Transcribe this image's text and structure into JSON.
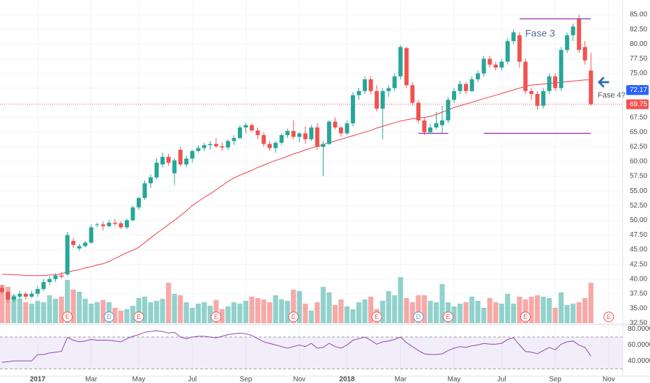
{
  "chart_data": {
    "type": "candlestick",
    "categories": [
      null,
      null,
      null,
      null,
      null,
      null,
      "2017",
      null,
      null,
      null,
      null,
      null,
      null,
      null,
      null,
      "Mar",
      null,
      null,
      null,
      null,
      null,
      null,
      null,
      "May",
      null,
      null,
      null,
      null,
      null,
      null,
      null,
      null,
      "Jul",
      null,
      null,
      null,
      null,
      null,
      null,
      null,
      null,
      "Sep",
      null,
      null,
      null,
      null,
      null,
      null,
      null,
      null,
      "Nov",
      null,
      null,
      null,
      null,
      null,
      null,
      null,
      "2018",
      null,
      null,
      null,
      null,
      null,
      null,
      null,
      null,
      "Mar",
      null,
      null,
      null,
      null,
      null,
      null,
      null,
      null,
      "May",
      null,
      null,
      null,
      null,
      null,
      null,
      null,
      "Jul",
      null,
      null,
      null,
      null,
      null,
      null,
      null,
      null,
      "Sep",
      null,
      null,
      null,
      null,
      null,
      null,
      null,
      null,
      "Nov"
    ],
    "open": [
      38.5,
      37.8,
      36.5,
      37,
      37.5,
      37,
      37.5,
      38.3,
      39.5,
      40,
      40.6,
      40.8,
      46.5,
      45.2,
      45.6,
      46.2,
      49.2,
      49.3,
      49,
      49.6,
      49.5,
      48.8,
      50,
      52.2,
      53.8,
      56.3,
      57.3,
      59.5,
      60.8,
      58,
      62,
      59.5,
      60.5,
      61.8,
      62.3,
      62.8,
      63,
      62.6,
      62.4,
      63.5,
      64,
      65.8,
      66.2,
      65.3,
      64.5,
      63,
      62.3,
      63.2,
      64.5,
      65.2,
      64.2,
      64.8,
      63.8,
      65.8,
      62.5,
      63,
      66.8,
      65.8,
      64.8,
      66.5,
      71.3,
      72,
      74,
      72,
      69,
      72,
      72.5,
      74.5,
      79.3,
      73,
      70,
      67,
      65,
      65.8,
      66.2,
      67,
      70.5,
      72,
      73.2,
      72,
      74,
      75,
      77.5,
      76.5,
      76,
      77,
      80.5,
      81.5,
      77,
      72,
      71.5,
      69.5,
      72,
      74.5,
      72.5,
      79,
      81.5,
      84.3,
      79.5,
      75.5,
      null,
      null,
      null
    ],
    "high": [
      39,
      38,
      37.5,
      38,
      37.8,
      38,
      38.8,
      40,
      40.5,
      41,
      41.2,
      48,
      47,
      46,
      46.5,
      49.3,
      49.6,
      49.8,
      50,
      50.2,
      49.8,
      50.3,
      52.5,
      54,
      56.8,
      57.8,
      60.5,
      61.5,
      61.3,
      60.5,
      62.5,
      61,
      62,
      62.8,
      63.2,
      63.5,
      64,
      63.3,
      63.8,
      64.5,
      66.2,
      66.6,
      66.5,
      65.8,
      65,
      63.5,
      63.5,
      64.8,
      65.6,
      67,
      65,
      66,
      66.2,
      66.5,
      63.5,
      67,
      67.5,
      66,
      67,
      71.8,
      72.5,
      74.5,
      74.5,
      73,
      72.5,
      73,
      75,
      79.8,
      79.6,
      73.5,
      70.5,
      67.5,
      66.5,
      68.5,
      69.5,
      71,
      72.5,
      73.8,
      73.5,
      74.5,
      75.5,
      78,
      78,
      77,
      77.5,
      81,
      82.5,
      82,
      77.5,
      72.5,
      72,
      72.5,
      75,
      75,
      79.5,
      82,
      83.5,
      85,
      80.5,
      78.5,
      null,
      null,
      null
    ],
    "low": [
      37.5,
      36,
      36,
      36.5,
      36.5,
      36.8,
      37,
      38,
      39,
      39.5,
      40.1,
      40.5,
      45.3,
      44.8,
      45.4,
      46,
      48.8,
      48.3,
      48.8,
      49,
      48.5,
      48.5,
      49.8,
      51.8,
      53.5,
      55.5,
      57,
      59,
      59.3,
      56,
      59.2,
      59,
      59.8,
      61.5,
      61.8,
      62,
      62.3,
      61.8,
      62,
      62.8,
      63.8,
      64.8,
      65,
      63.8,
      62.5,
      61.8,
      61.5,
      62.8,
      64,
      63.8,
      63.3,
      63,
      63.5,
      62,
      57.5,
      62.8,
      65.5,
      64.2,
      64.5,
      66,
      70.5,
      71.5,
      71.5,
      68.5,
      63.8,
      71,
      72,
      74,
      72.5,
      69.5,
      66.5,
      64.5,
      64.8,
      65.5,
      64.8,
      66.5,
      70,
      71.5,
      71.5,
      71.8,
      73.5,
      74.5,
      76,
      75.5,
      75.5,
      76.5,
      80,
      76,
      71.5,
      70.5,
      68.8,
      69,
      71.5,
      72,
      72,
      78.5,
      80.5,
      78.5,
      76.5,
      69.5,
      null,
      null,
      null
    ],
    "close": [
      37.8,
      36.5,
      37,
      37.5,
      37,
      37.5,
      38.3,
      39.5,
      40,
      40.6,
      40.4,
      47.5,
      45.8,
      45.6,
      46.2,
      48.8,
      49.3,
      49,
      49.6,
      49.4,
      48.8,
      50,
      52.2,
      53.8,
      56.3,
      57.3,
      59.8,
      60.8,
      59.8,
      60.2,
      59.5,
      60.5,
      61.8,
      62.3,
      62.8,
      63,
      62.6,
      62.4,
      63.5,
      64,
      65.8,
      66.2,
      65.3,
      64.5,
      63,
      62.3,
      63.2,
      64.5,
      65.2,
      64.2,
      64.8,
      63.8,
      65.8,
      62.5,
      63,
      66.8,
      65.8,
      64.8,
      66.5,
      71.3,
      72,
      74,
      72,
      69,
      72,
      72.5,
      74.5,
      79.5,
      73,
      70,
      67,
      65,
      65.8,
      66.5,
      67,
      70.5,
      72,
      73.2,
      72,
      74,
      75,
      77.5,
      76.5,
      76,
      77,
      80.5,
      82,
      77,
      72,
      71.5,
      69.5,
      72,
      74.5,
      72.5,
      79,
      81.5,
      83,
      79,
      77.2,
      69.75,
      null,
      null,
      null
    ],
    "up_color": "#26a69a",
    "down_color": "#ef5350",
    "volume": [
      55,
      52,
      40,
      35,
      30,
      28,
      32,
      30,
      40,
      35,
      38,
      62,
      48,
      45,
      35,
      28,
      30,
      33,
      30,
      22,
      18,
      20,
      25,
      36,
      38,
      30,
      32,
      35,
      58,
      42,
      40,
      30,
      22,
      28,
      30,
      25,
      33,
      20,
      24,
      30,
      28,
      32,
      38,
      36,
      34,
      30,
      40,
      34,
      32,
      48,
      46,
      28,
      18,
      30,
      52,
      44,
      26,
      34,
      24,
      20,
      30,
      34,
      38,
      20,
      32,
      46,
      40,
      66,
      36,
      30,
      40,
      40,
      32,
      30,
      56,
      30,
      24,
      28,
      30,
      38,
      32,
      22,
      36,
      30,
      28,
      42,
      28,
      38,
      34,
      38,
      40,
      38,
      36,
      22,
      44,
      26,
      28,
      30,
      36,
      58,
      null,
      null,
      null
    ],
    "ma": {
      "color": "#f23645",
      "values": [
        40.8,
        40.8,
        40.7,
        40.7,
        40.6,
        40.6,
        40.6,
        40.6,
        40.7,
        40.7,
        40.9,
        41.2,
        41.4,
        41.6,
        41.9,
        42.1,
        42.4,
        42.6,
        43,
        43.5,
        44,
        44.5,
        44.9,
        45.4,
        46.2,
        47,
        47.8,
        48.5,
        49.3,
        50,
        50.8,
        51.6,
        52.5,
        53.2,
        53.9,
        54.5,
        55.2,
        55.9,
        56.6,
        57.2,
        57.7,
        58.1,
        58.5,
        59,
        59.4,
        59.8,
        60.2,
        60.5,
        60.9,
        61.3,
        61.6,
        62,
        62.3,
        62.6,
        62.9,
        63.2,
        63.5,
        63.8,
        64.1,
        64.4,
        64.7,
        65,
        65.3,
        65.7,
        66,
        66.3,
        66.6,
        66.9,
        67.1,
        67.3,
        67.4,
        67.5,
        67.7,
        68,
        68.4,
        68.8,
        69.2,
        69.5,
        69.8,
        70.1,
        70.4,
        70.7,
        71,
        71.3,
        71.6,
        71.9,
        72.2,
        72.5,
        72.8,
        73,
        73.1,
        73.2,
        73.3,
        73.4,
        73.5,
        73.6,
        73.7,
        73.8,
        73.9,
        73.9,
        null,
        null,
        null
      ]
    },
    "ylim": [
      32.5,
      87.5
    ],
    "yticks": [
      {
        "value": 32.5,
        "label": "32.50"
      },
      {
        "value": 35,
        "label": "35.00"
      },
      {
        "value": 37.5,
        "label": "37.50"
      },
      {
        "value": 40,
        "label": "40.00"
      },
      {
        "value": 42.5,
        "label": "42.50"
      },
      {
        "value": 45,
        "label": "45.00"
      },
      {
        "value": 47.5,
        "label": "47.50"
      },
      {
        "value": 50,
        "label": "50.00"
      },
      {
        "value": 52.5,
        "label": "52.50"
      },
      {
        "value": 55,
        "label": "55.00"
      },
      {
        "value": 57.5,
        "label": "57.50"
      },
      {
        "value": 60,
        "label": "60.00"
      },
      {
        "value": 62.5,
        "label": "62.50"
      },
      {
        "value": 65,
        "label": "65.00"
      },
      {
        "value": 67.5,
        "label": "67.50"
      },
      {
        "value": 70,
        "label": "70.00"
      },
      {
        "value": 72.5,
        "label": "72.50"
      },
      {
        "value": 75,
        "label": "75.00"
      },
      {
        "value": 77.5,
        "label": "77.50"
      },
      {
        "value": 80,
        "label": "80.00"
      },
      {
        "value": 82.5,
        "label": "82.50"
      },
      {
        "value": 85,
        "label": "85.00"
      }
    ],
    "grid": true,
    "price_markers": [
      {
        "value": 72.17,
        "color": "#2962ff"
      },
      {
        "value": 69.75,
        "color": "#ef5350",
        "line": true
      }
    ],
    "levels": [
      {
        "value": 84.3,
        "from": 87,
        "to": 99,
        "color": "#9c27b0"
      },
      {
        "value": 64.8,
        "from": 70,
        "to": 75,
        "color": "#9c27b0"
      },
      {
        "value": 64.8,
        "from": 81,
        "to": 99,
        "color": "#9c27b0"
      }
    ],
    "events": [
      {
        "label": "E",
        "at": 11,
        "color": "#ef5350"
      },
      {
        "label": "D",
        "at": 18,
        "color": "#5b8fc7"
      },
      {
        "label": "E",
        "at": 23,
        "color": "#ef5350"
      },
      {
        "label": "E",
        "at": 36,
        "color": "#ef5350"
      },
      {
        "label": "E",
        "at": 49,
        "color": "#ef5350"
      },
      {
        "label": "E",
        "at": 63,
        "color": "#ef5350"
      },
      {
        "label": "D",
        "at": 70,
        "color": "#5b8fc7"
      },
      {
        "label": "E",
        "at": 75,
        "color": "#ef5350"
      },
      {
        "label": "E",
        "at": 88,
        "color": "#ef5350"
      },
      {
        "label": "E",
        "at": 102,
        "color": "#ef5350"
      }
    ],
    "annotations": [
      "Fase 3",
      "Fase 4?"
    ],
    "rsi": {
      "type": "line",
      "color": "#8e44ad",
      "values": [
        38.3,
        39,
        40,
        40,
        40,
        40,
        48,
        48,
        50,
        51,
        52,
        69.6,
        66,
        64,
        65,
        67,
        66,
        66,
        66,
        65,
        64,
        68,
        71,
        73,
        76,
        77,
        78,
        77,
        75,
        76,
        70,
        68,
        70,
        71,
        71,
        70,
        69,
        71,
        73,
        74,
        75,
        74,
        72,
        68,
        64,
        62,
        60,
        58,
        56,
        58,
        60,
        58,
        62,
        56,
        57,
        62,
        58,
        56,
        60,
        66,
        68,
        70,
        66,
        61,
        64,
        65,
        67,
        70,
        63,
        58,
        53,
        49,
        48,
        48,
        49,
        53,
        56,
        58,
        57,
        59,
        60,
        62,
        61,
        61,
        62,
        67,
        69,
        60,
        52,
        51,
        49,
        53,
        57,
        54,
        61,
        64,
        65,
        60,
        57,
        46,
        null,
        null,
        null
      ],
      "ylim": [
        21,
        84
      ],
      "yticks": [
        {
          "value": 40,
          "label": "40.0000"
        },
        {
          "value": 60,
          "label": "60.0000"
        },
        {
          "value": 80,
          "label": "80.0000"
        }
      ],
      "band": [
        30,
        70
      ]
    }
  }
}
